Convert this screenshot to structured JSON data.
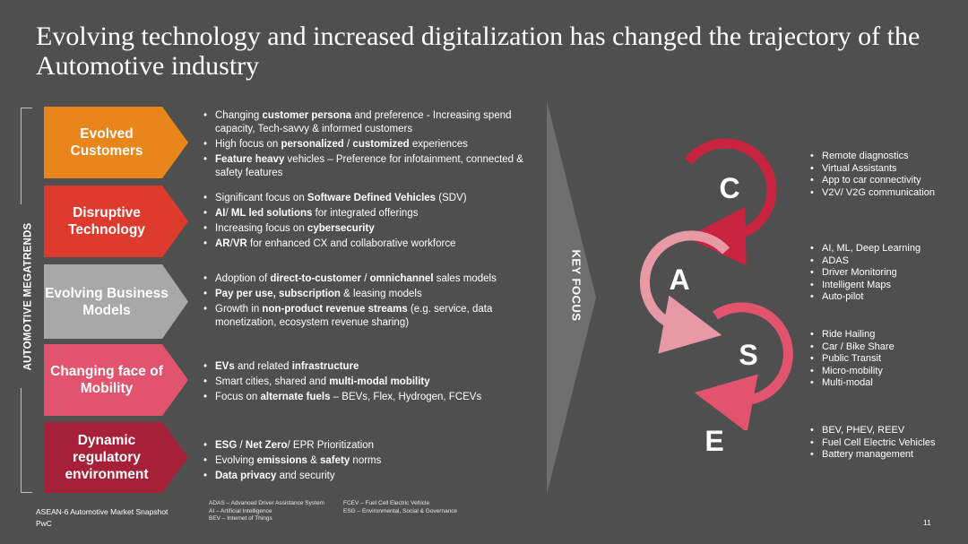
{
  "title": "Evolving technology and increased digitalization has changed the trajectory of the Automotive industry",
  "megatrends_label": "AUTOMOTIVE MEGATRENDS",
  "key_focus_label": "KEY FOCUS",
  "colors": {
    "background": "#4f4f4f",
    "evolved_customers": "#e8861b",
    "disruptive_technology": "#df3a2e",
    "evolving_business_models": "#a8a8a8",
    "changing_mobility": "#e2546d",
    "regulatory": "#a62038"
  },
  "trends": [
    {
      "label": "Evolved Customers",
      "bullets": [
        [
          {
            "t": "Changing "
          },
          {
            "t": "customer persona",
            "b": true
          },
          {
            "t": " and preference - Increasing spend capacity, Tech-savvy & informed customers"
          }
        ],
        [
          {
            "t": "High focus on "
          },
          {
            "t": "personalized",
            "b": true
          },
          {
            "t": " / "
          },
          {
            "t": "customized",
            "b": true
          },
          {
            "t": " experiences"
          }
        ],
        [
          {
            "t": "Feature heavy",
            "b": true
          },
          {
            "t": " vehicles – Preference for infotainment, connected & safety features"
          }
        ]
      ]
    },
    {
      "label": "Disruptive Technology",
      "bullets": [
        [
          {
            "t": "Significant focus on "
          },
          {
            "t": "Software Defined Vehicles",
            "b": true
          },
          {
            "t": " (SDV)"
          }
        ],
        [
          {
            "t": "AI",
            "b": true
          },
          {
            "t": "/ "
          },
          {
            "t": "ML led solutions",
            "b": true
          },
          {
            "t": " for integrated offerings"
          }
        ],
        [
          {
            "t": "Increasing focus on "
          },
          {
            "t": "cybersecurity",
            "b": true
          }
        ],
        [
          {
            "t": "AR",
            "b": true
          },
          {
            "t": "/"
          },
          {
            "t": "VR",
            "b": true
          },
          {
            "t": " for enhanced CX and collaborative workforce"
          }
        ]
      ]
    },
    {
      "label": "Evolving Business Models",
      "bullets": [
        [
          {
            "t": "Adoption of "
          },
          {
            "t": "direct-to-customer",
            "b": true
          },
          {
            "t": " / "
          },
          {
            "t": "omnichannel",
            "b": true
          },
          {
            "t": " sales models"
          }
        ],
        [
          {
            "t": "Pay per use, subscription",
            "b": true
          },
          {
            "t": " & leasing models"
          }
        ],
        [
          {
            "t": "Growth in "
          },
          {
            "t": "non-product revenue streams",
            "b": true
          },
          {
            "t": " (e.g. service, data monetization, ecosystem revenue sharing)"
          }
        ]
      ]
    },
    {
      "label": "Changing face of Mobility",
      "bullets": [
        [
          {
            "t": "EVs",
            "b": true
          },
          {
            "t": " and related "
          },
          {
            "t": "infrastructure",
            "b": true
          }
        ],
        [
          {
            "t": "Smart cities, shared and "
          },
          {
            "t": "multi-modal mobility",
            "b": true
          }
        ],
        [
          {
            "t": "Focus on "
          },
          {
            "t": "alternate fuels",
            "b": true
          },
          {
            "t": " – BEVs, Flex, Hydrogen, FCEVs"
          }
        ]
      ]
    },
    {
      "label": "Dynamic regulatory environment",
      "bullets": [
        [
          {
            "t": "ESG",
            "b": true
          },
          {
            "t": " / "
          },
          {
            "t": "Net Zero",
            "b": true
          },
          {
            "t": "/ EPR Prioritization"
          }
        ],
        [
          {
            "t": "Evolving "
          },
          {
            "t": "emissions",
            "b": true
          },
          {
            "t": " & "
          },
          {
            "t": "safety",
            "b": true
          },
          {
            "t": " norms"
          }
        ],
        [
          {
            "t": "Data privacy",
            "b": true
          },
          {
            "t": " and security"
          }
        ]
      ]
    }
  ],
  "case": {
    "letters": [
      "C",
      "A",
      "S",
      "E"
    ],
    "c_items": [
      "Remote diagnostics",
      "Virtual Assistants",
      "App to car connectivity",
      "V2V/ V2G communication"
    ],
    "a_items": [
      "AI, ML, Deep Learning",
      "ADAS",
      "Driver Monitoring",
      "Intelligent Maps",
      "Auto-pilot"
    ],
    "s_items": [
      "Ride Hailing",
      "Car / Bike Share",
      "Public Transit",
      "Micro-mobility",
      "Multi-modal"
    ],
    "e_items": [
      "BEV, PHEV, REEV",
      "Fuel Cell Electric Vehicles",
      "Battery management"
    ]
  },
  "footer": {
    "source_line1": "ASEAN-6 Automotive Market Snapshot",
    "source_line2": "PwC",
    "abbr_col1": [
      "ADAS – Advanced Driver Assistance System",
      "AI – Artificial Intelligence",
      "BEV – Internet of Things"
    ],
    "abbr_col2": [
      "FCEV – Fuel Cell Electric Vehicle",
      "ESG – Environmental, Social & Governance"
    ],
    "page_number": "11"
  }
}
